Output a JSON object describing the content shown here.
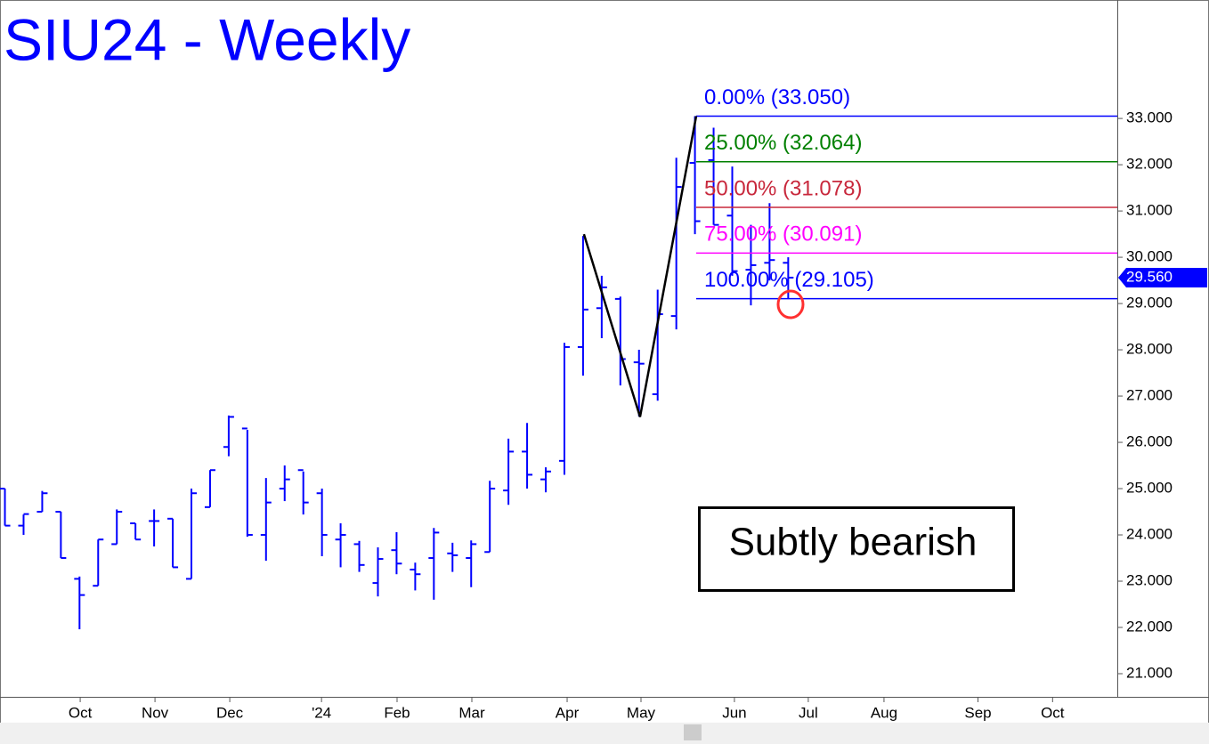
{
  "chart_data": {
    "type": "ohlc",
    "title": "SIU24 - Weekly",
    "x": [
      0,
      1,
      2,
      3,
      4,
      5,
      6,
      7,
      8,
      9,
      10,
      11,
      12,
      13,
      14,
      15,
      16,
      17,
      18,
      19,
      20,
      21,
      22,
      23,
      24,
      25,
      26,
      27,
      28,
      29,
      30,
      31,
      32,
      33,
      34,
      35,
      36,
      37,
      38,
      39,
      40,
      41,
      42
    ],
    "series": [
      {
        "color": "#0000ff",
        "open": [
          25.0,
          24.2,
          24.5,
          24.5,
          23.05,
          22.9,
          23.8,
          24.25,
          24.3,
          24.35,
          23.05,
          24.6,
          25.9,
          26.3,
          24.0,
          25.0,
          25.4,
          24.9,
          23.9,
          23.8,
          22.96,
          23.67,
          23.25,
          23.5,
          23.6,
          23.5,
          23.63,
          24.96,
          25.8,
          25.2,
          25.6,
          28.06,
          28.9,
          29.1,
          27.73,
          27.04,
          28.73,
          32.04,
          32.1,
          30.9,
          29.73,
          29.88,
          29.88
        ],
        "high": [
          25.0,
          24.44,
          24.95,
          24.5,
          23.1,
          23.9,
          24.55,
          24.25,
          24.55,
          24.35,
          25.0,
          25.4,
          26.58,
          26.27,
          25.23,
          25.5,
          25.37,
          25.0,
          24.25,
          23.87,
          23.73,
          24.06,
          23.4,
          24.15,
          23.83,
          23.88,
          25.17,
          26.08,
          26.42,
          25.46,
          28.15,
          30.46,
          29.6,
          29.15,
          28.0,
          29.3,
          32.15,
          33.05,
          32.8,
          31.96,
          30.7,
          31.17,
          30.0
        ],
        "low": [
          24.2,
          24.0,
          24.5,
          23.5,
          21.96,
          22.9,
          23.8,
          23.9,
          23.75,
          23.3,
          23.05,
          24.6,
          25.7,
          23.96,
          23.44,
          24.73,
          24.44,
          23.54,
          23.3,
          23.2,
          22.67,
          23.15,
          22.8,
          22.6,
          23.2,
          22.87,
          23.63,
          24.65,
          25.0,
          24.92,
          25.3,
          27.44,
          28.25,
          27.23,
          26.56,
          26.9,
          28.44,
          30.5,
          30.7,
          29.6,
          28.96,
          29.5,
          29.1
        ],
        "close": [
          24.2,
          24.45,
          24.9,
          23.5,
          22.7,
          23.9,
          24.5,
          23.9,
          24.3,
          23.3,
          24.9,
          25.4,
          26.55,
          24.0,
          24.7,
          25.2,
          24.7,
          24.0,
          24.0,
          23.35,
          23.48,
          23.38,
          23.15,
          24.05,
          23.56,
          23.8,
          25.0,
          25.8,
          25.3,
          25.37,
          28.06,
          28.87,
          29.35,
          27.8,
          27.7,
          28.77,
          31.52,
          30.78,
          30.7,
          29.7,
          29.83,
          29.94,
          29.56
        ]
      }
    ],
    "xlim": [
      -0.24,
      59.67
    ],
    "xticks": [
      {
        "value": 4.06,
        "label": "Oct"
      },
      {
        "value": 8.07,
        "label": "Nov"
      },
      {
        "value": 12.08,
        "label": "Dec"
      },
      {
        "value": 17.0,
        "label": "'24"
      },
      {
        "value": 21.05,
        "label": "Feb"
      },
      {
        "value": 25.06,
        "label": "Mar"
      },
      {
        "value": 30.17,
        "label": "Apr"
      },
      {
        "value": 34.13,
        "label": "May"
      },
      {
        "value": 39.14,
        "label": "Jun"
      },
      {
        "value": 43.1,
        "label": "Jul"
      },
      {
        "value": 47.16,
        "label": "Aug"
      },
      {
        "value": 52.2,
        "label": "Sep"
      },
      {
        "value": 56.2,
        "label": "Oct"
      }
    ],
    "ylim": [
      20.5,
      35.56
    ],
    "yticks": [
      {
        "value": 21,
        "label": "21.000"
      },
      {
        "value": 22,
        "label": "22.000"
      },
      {
        "value": 23,
        "label": "23.000"
      },
      {
        "value": 24,
        "label": "24.000"
      },
      {
        "value": 25,
        "label": "25.000"
      },
      {
        "value": 26,
        "label": "26.000"
      },
      {
        "value": 27,
        "label": "27.000"
      },
      {
        "value": 28,
        "label": "28.000"
      },
      {
        "value": 29,
        "label": "29.000"
      },
      {
        "value": 30,
        "label": "30.000"
      },
      {
        "value": 31,
        "label": "31.000"
      },
      {
        "value": 32,
        "label": "32.000"
      },
      {
        "value": 33,
        "label": "33.000"
      }
    ],
    "fib_levels": [
      {
        "label": "0.00% (33.050)",
        "value": 33.05,
        "color": "#0000ff"
      },
      {
        "label": "25.00% (32.064)",
        "value": 32.064,
        "color": "#008000"
      },
      {
        "label": "50.00% (31.078)",
        "value": 31.078,
        "color": "#c8283c"
      },
      {
        "label": "75.00% (30.091)",
        "value": 30.091,
        "color": "#ff00ff"
      },
      {
        "label": "100.00% (29.105)",
        "value": 29.105,
        "color": "#0000ff"
      }
    ],
    "fib_start_x": 37.09,
    "zigzag": {
      "x": [
        31.07,
        34.08,
        37.09
      ],
      "values": [
        30.5,
        26.55,
        33.05
      ]
    },
    "last_price": {
      "value": 29.56,
      "label": "29.560"
    },
    "annotation": "Subtly bearish"
  }
}
